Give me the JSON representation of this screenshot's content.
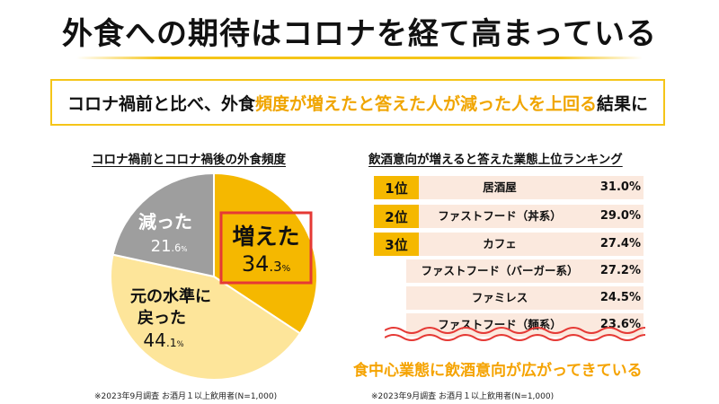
{
  "title": "外食への期待はコロナを経て高まっている",
  "summary": {
    "pre": "コロナ禍前と比べ、外食",
    "highlight": "頻度が増えたと答えた人が減った人を上回る",
    "post": "結果に"
  },
  "pie": {
    "title": "コロナ禍前とコロナ禍後の外食頻度",
    "note": "※2023年9月調査 お酒月１以上飲用者(N=1,000)"
  },
  "ranking": {
    "title": "飲酒意向が増えると答えた業態上位ランキング",
    "caption": "食中心業態に飲酒意向が広がってきている",
    "note": "※2023年9月調査 お酒月１以上飲用者(N=1,000)",
    "rows": [
      {
        "rank": "1位",
        "name": "居酒屋",
        "value": "31.0%"
      },
      {
        "rank": "2位",
        "name": "ファストフード（丼系）",
        "value": "29.0%"
      },
      {
        "rank": "3位",
        "name": "カフェ",
        "value": "27.4%"
      },
      {
        "rank": "",
        "name": "ファストフード（バーガー系）",
        "value": "27.2%"
      },
      {
        "rank": "",
        "name": "ファミレス",
        "value": "24.5%"
      },
      {
        "rank": "",
        "name": "ファストフード（麺系）",
        "value": "23.6%"
      }
    ]
  },
  "chart_data": [
    {
      "type": "pie",
      "title": "コロナ禍前とコロナ禍後の外食頻度",
      "slices": [
        {
          "label": "増えた",
          "value": 34.3,
          "int": "34",
          "dec": ".3",
          "unit": "%",
          "color": "#f5b800"
        },
        {
          "label": "元の水準に戻った",
          "label_lines": [
            "元の水準に",
            "戻った"
          ],
          "value": 44.1,
          "int": "44",
          "dec": ".1",
          "unit": "%",
          "color": "#fde59a"
        },
        {
          "label": "減った",
          "value": 21.6,
          "int": "21",
          "dec": ".6",
          "unit": "%",
          "color": "#9e9e9e"
        }
      ]
    },
    {
      "type": "table",
      "title": "飲酒意向が増えると答えた業態上位ランキング",
      "categories": [
        "居酒屋",
        "ファストフード（丼系）",
        "カフェ",
        "ファストフード（バーガー系）",
        "ファミレス",
        "ファストフード（麺系）"
      ],
      "values": [
        31.0,
        29.0,
        27.4,
        27.2,
        24.5,
        23.6
      ]
    }
  ]
}
